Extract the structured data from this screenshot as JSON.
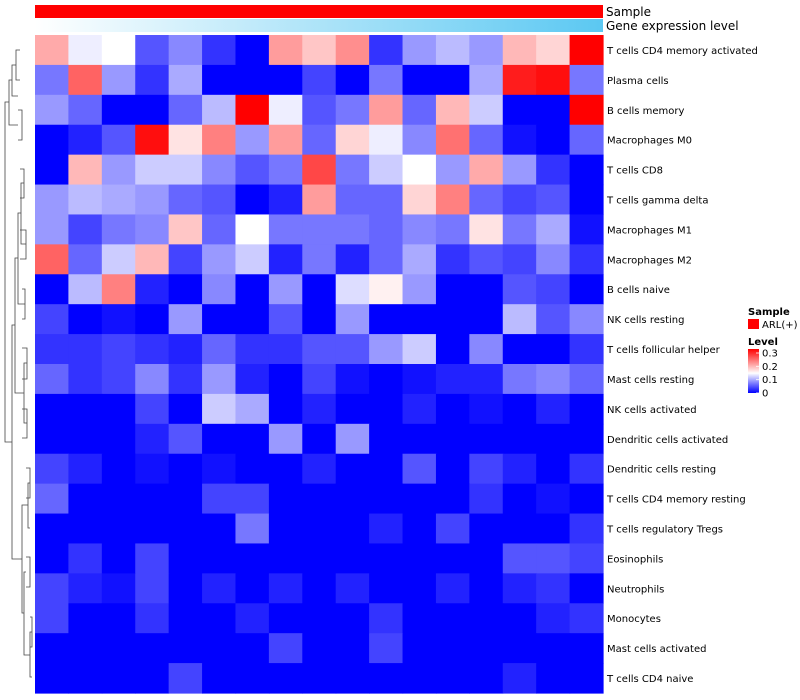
{
  "chart_data": {
    "type": "heatmap",
    "annotations": [
      {
        "label": "Sample",
        "color": "#ff0000"
      },
      {
        "label": "Gene expression level",
        "gradient": [
          "#ffffff",
          "#5bc8f2"
        ]
      }
    ],
    "rows": [
      "T cells CD4 memory activated",
      "Plasma cells",
      "B cells memory",
      "Macrophages M0",
      "T cells CD8",
      "T cells gamma delta",
      "Macrophages M1",
      "Macrophages M2",
      "B cells naive",
      "NK cells resting",
      "T cells follicular helper",
      "Mast cells resting",
      "NK cells activated",
      "Dendritic cells activated",
      "Dendritic cells resting",
      "T cells CD4 memory resting",
      "T cells regulatory  Tregs",
      "Eosinophils",
      "Neutrophils",
      "Monocytes",
      "Mast cells activated",
      "T cells CD4 naive"
    ],
    "values": [
      [
        0.21,
        0.14,
        0.15,
        0.05,
        0.08,
        0.03,
        0.0,
        0.22,
        0.19,
        0.23,
        0.03,
        0.09,
        0.11,
        0.09,
        0.2,
        0.18,
        0.33
      ],
      [
        0.07,
        0.26,
        0.09,
        0.03,
        0.1,
        0.0,
        0.0,
        0.0,
        0.04,
        0.0,
        0.07,
        0.0,
        0.0,
        0.1,
        0.31,
        0.32,
        0.07
      ],
      [
        0.09,
        0.06,
        0.0,
        0.0,
        0.06,
        0.11,
        0.33,
        0.14,
        0.05,
        0.07,
        0.22,
        0.06,
        0.2,
        0.12,
        0.0,
        0.0,
        0.33
      ],
      [
        0.0,
        0.02,
        0.05,
        0.32,
        0.17,
        0.24,
        0.09,
        0.22,
        0.06,
        0.18,
        0.14,
        0.08,
        0.25,
        0.06,
        0.01,
        0.0,
        0.06
      ],
      [
        0.0,
        0.2,
        0.09,
        0.12,
        0.12,
        0.08,
        0.05,
        0.07,
        0.28,
        0.07,
        0.12,
        0.15,
        0.09,
        0.21,
        0.09,
        0.03,
        0.0
      ],
      [
        0.09,
        0.11,
        0.1,
        0.09,
        0.06,
        0.05,
        0.0,
        0.02,
        0.22,
        0.06,
        0.06,
        0.18,
        0.24,
        0.06,
        0.04,
        0.05,
        0.0
      ],
      [
        0.09,
        0.04,
        0.07,
        0.08,
        0.19,
        0.06,
        0.15,
        0.07,
        0.07,
        0.07,
        0.06,
        0.08,
        0.07,
        0.17,
        0.07,
        0.1,
        0.01
      ],
      [
        0.26,
        0.06,
        0.12,
        0.2,
        0.04,
        0.09,
        0.12,
        0.02,
        0.07,
        0.02,
        0.06,
        0.1,
        0.03,
        0.05,
        0.04,
        0.08,
        0.03
      ],
      [
        0.0,
        0.11,
        0.24,
        0.02,
        0.0,
        0.08,
        0.0,
        0.09,
        0.0,
        0.13,
        0.16,
        0.09,
        0.0,
        0.0,
        0.05,
        0.04,
        0.0
      ],
      [
        0.04,
        0.0,
        0.01,
        0.0,
        0.09,
        0.0,
        0.0,
        0.05,
        0.0,
        0.09,
        0.0,
        0.0,
        0.0,
        0.0,
        0.11,
        0.05,
        0.08
      ],
      [
        0.03,
        0.03,
        0.04,
        0.03,
        0.02,
        0.06,
        0.03,
        0.03,
        0.05,
        0.05,
        0.09,
        0.12,
        0.0,
        0.08,
        0.0,
        0.0,
        0.03
      ],
      [
        0.06,
        0.03,
        0.04,
        0.08,
        0.03,
        0.09,
        0.02,
        0.0,
        0.04,
        0.01,
        0.0,
        0.01,
        0.02,
        0.02,
        0.07,
        0.08,
        0.06
      ],
      [
        0.0,
        0.0,
        0.0,
        0.04,
        0.0,
        0.12,
        0.1,
        0.0,
        0.02,
        0.0,
        0.0,
        0.02,
        0.0,
        0.01,
        0.0,
        0.02,
        0.0
      ],
      [
        0.0,
        0.0,
        0.0,
        0.02,
        0.05,
        0.0,
        0.0,
        0.09,
        0.0,
        0.09,
        0.0,
        0.0,
        0.0,
        0.0,
        0.0,
        0.0,
        0.0
      ],
      [
        0.04,
        0.02,
        0.0,
        0.01,
        0.0,
        0.01,
        0.0,
        0.0,
        0.02,
        0.0,
        0.0,
        0.05,
        0.0,
        0.04,
        0.02,
        0.0,
        0.03
      ],
      [
        0.06,
        0.0,
        0.0,
        0.0,
        0.0,
        0.04,
        0.04,
        0.0,
        0.0,
        0.0,
        0.0,
        0.0,
        0.0,
        0.03,
        0.0,
        0.01,
        0.0
      ],
      [
        0.0,
        0.0,
        0.0,
        0.0,
        0.0,
        0.0,
        0.07,
        0.0,
        0.0,
        0.0,
        0.02,
        0.0,
        0.04,
        0.0,
        0.0,
        0.0,
        0.03
      ],
      [
        0.0,
        0.03,
        0.0,
        0.04,
        0.0,
        0.0,
        0.0,
        0.0,
        0.0,
        0.0,
        0.0,
        0.0,
        0.0,
        0.0,
        0.05,
        0.05,
        0.04
      ],
      [
        0.04,
        0.02,
        0.01,
        0.04,
        0.0,
        0.02,
        0.0,
        0.02,
        0.0,
        0.02,
        0.0,
        0.0,
        0.02,
        0.0,
        0.02,
        0.03,
        0.0
      ],
      [
        0.04,
        0.0,
        0.0,
        0.03,
        0.0,
        0.0,
        0.02,
        0.0,
        0.0,
        0.0,
        0.03,
        0.0,
        0.0,
        0.0,
        0.0,
        0.02,
        0.03
      ],
      [
        0.0,
        0.0,
        0.0,
        0.0,
        0.0,
        0.0,
        0.0,
        0.04,
        0.0,
        0.0,
        0.04,
        0.0,
        0.0,
        0.0,
        0.0,
        0.0,
        0.0
      ],
      [
        0.0,
        0.0,
        0.0,
        0.0,
        0.04,
        0.0,
        0.0,
        0.0,
        0.0,
        0.0,
        0.0,
        0.0,
        0.0,
        0.0,
        0.02,
        0.0,
        0.0
      ]
    ],
    "value_range": [
      0,
      0.33
    ],
    "color_scale": {
      "low": "#0000ff",
      "mid": "#ffffff",
      "high": "#ff0000",
      "mid_value": 0.15
    },
    "legend": {
      "position": "right",
      "sample_title": "Sample",
      "sample_entry": "ARL(+)",
      "level_title": "Level",
      "level_ticks": [
        {
          "label": "0.3",
          "value": 0.3
        },
        {
          "label": "0.2",
          "value": 0.2
        },
        {
          "label": "0.1",
          "value": 0.1
        },
        {
          "label": "0",
          "value": 0
        }
      ]
    },
    "dendrogram": "row clustering tree on the left"
  }
}
